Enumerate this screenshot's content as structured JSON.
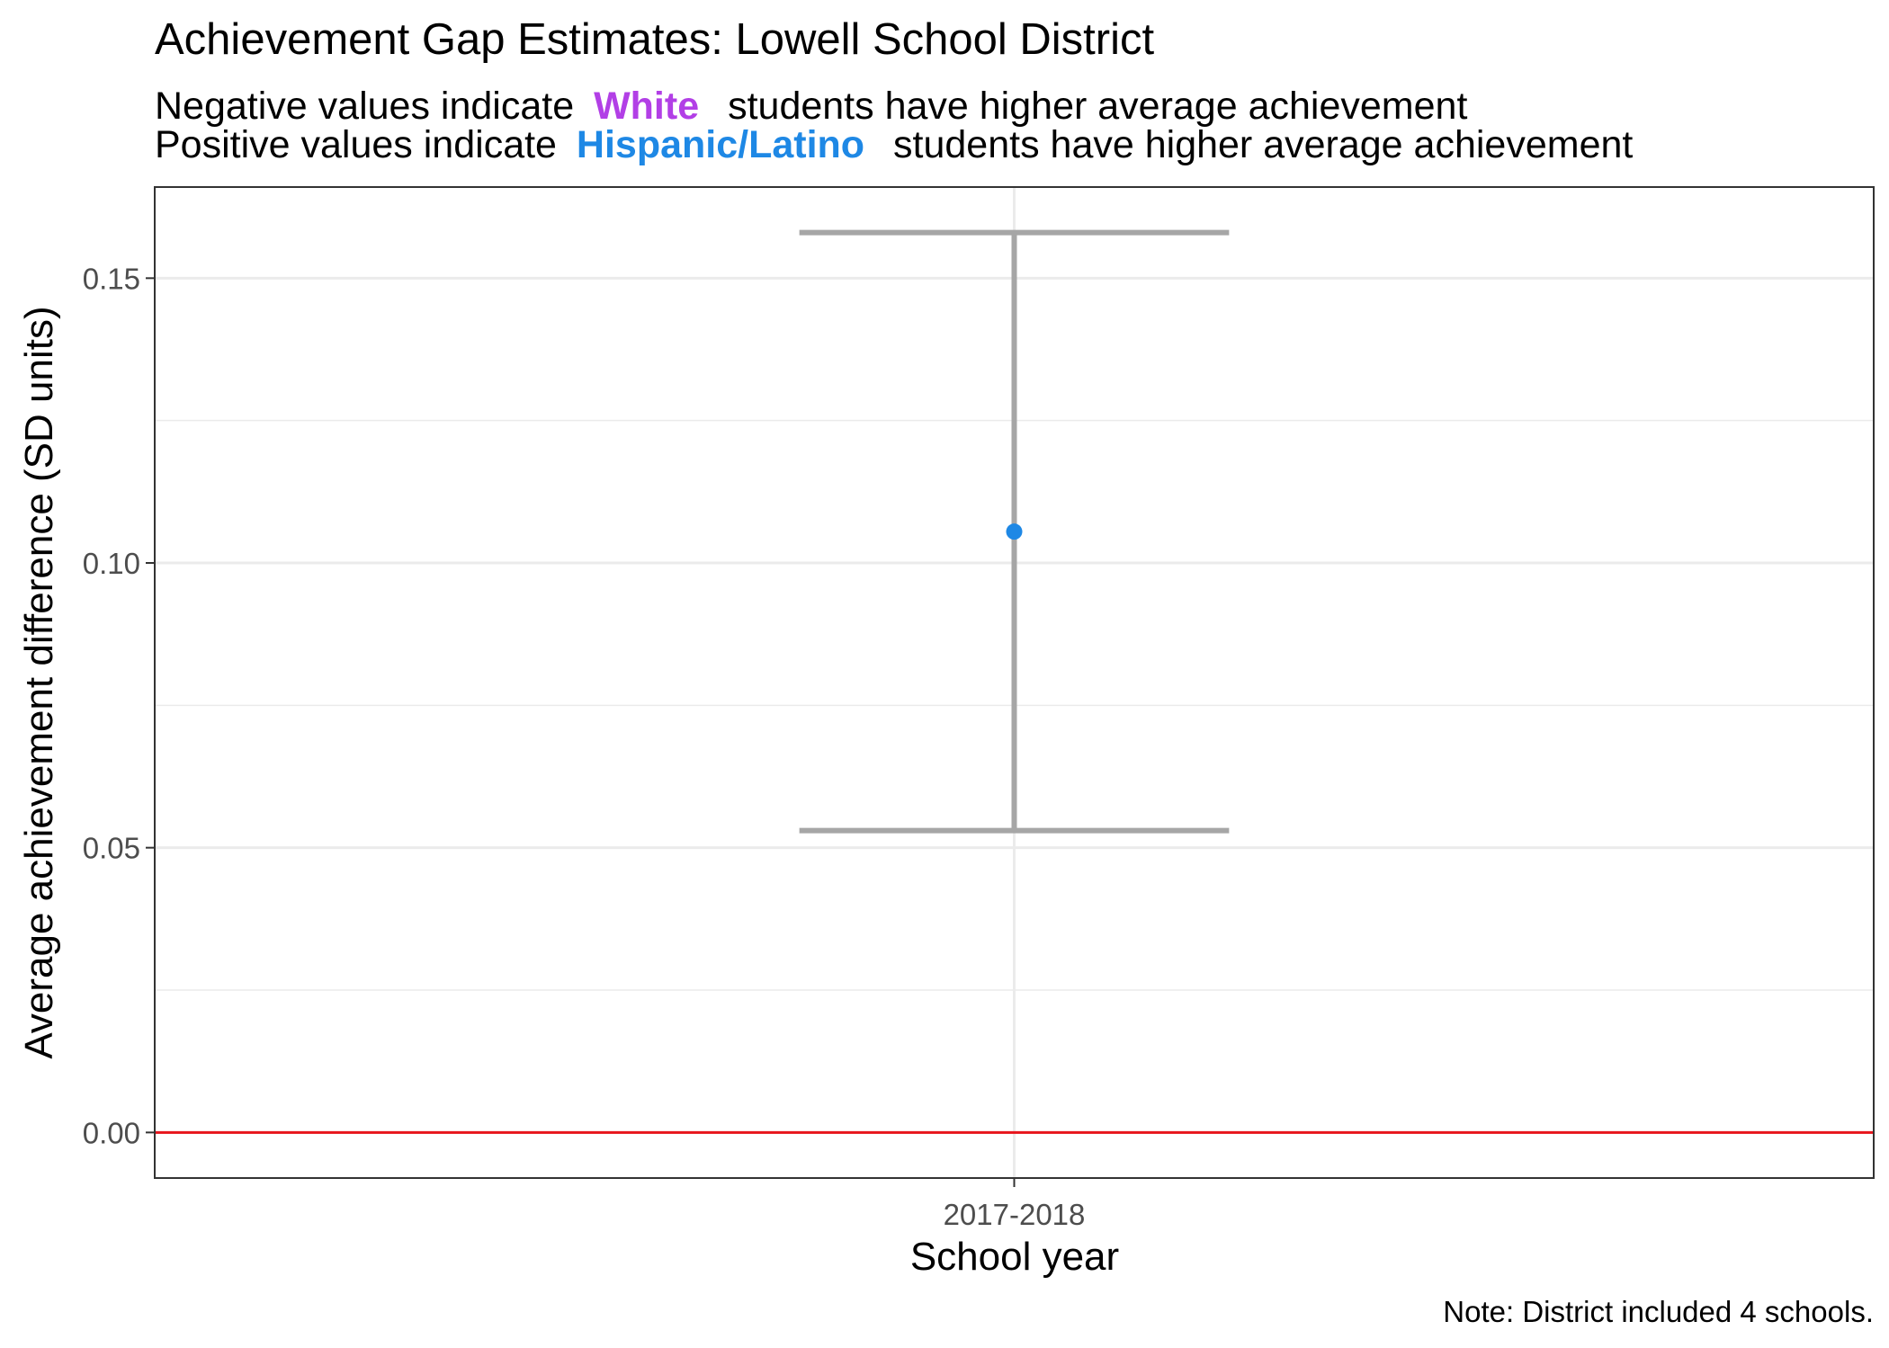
{
  "title": "Achievement Gap Estimates: Lowell School District",
  "subtitle": {
    "line1": {
      "before": "Negative values indicate",
      "group": "White",
      "after": "students have higher average achievement"
    },
    "line2": {
      "before": "Positive values indicate",
      "group": "Hispanic/Latino",
      "after": "students have higher average achievement"
    }
  },
  "caption": "Note: District included 4 schools.",
  "colors": {
    "white_group": "#B23FE6",
    "hispanic_group": "#1E88E5",
    "errorbar": "#A6A6A6",
    "zero_line": "#E8141B",
    "grid": "#EBEBEB",
    "panel_border": "#333333"
  },
  "chart_data": {
    "type": "scatter",
    "title": "Achievement Gap Estimates: Lowell School District",
    "xlabel": "School year",
    "ylabel": "Average achievement difference (SD units)",
    "categories": [
      "2017-2018"
    ],
    "points": [
      {
        "x": "2017-2018",
        "y": 0.1055,
        "ymin": 0.053,
        "ymax": 0.158,
        "color": "#1E88E5"
      }
    ],
    "ylim": [
      -0.008,
      0.166
    ],
    "yticks": [
      0.0,
      0.05,
      0.1,
      0.15
    ],
    "ytick_labels": [
      "0.00",
      "0.05",
      "0.10",
      "0.15"
    ],
    "reference_line": {
      "y": 0.0,
      "color": "#E8141B"
    },
    "grid": true,
    "legend": "none"
  }
}
